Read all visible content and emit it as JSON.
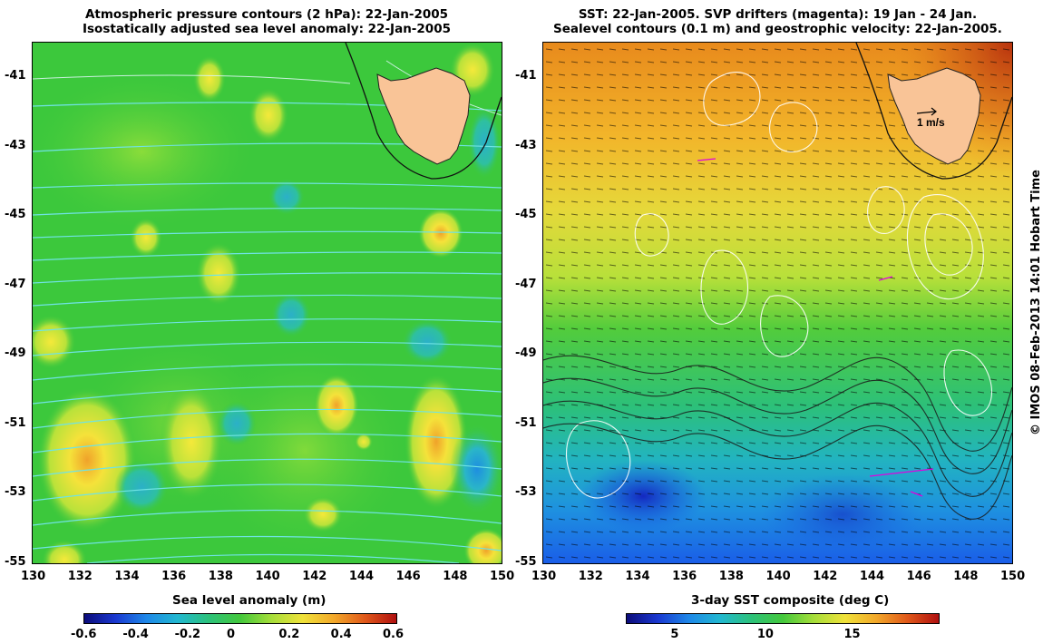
{
  "left_panel": {
    "title_line1": "Atmospheric pressure contours (2 hPa): 22-Jan-2005",
    "title_line2": "Isostatically adjusted sea level anomaly: 22-Jan-2005",
    "colorbar_title": "Sea level anomaly (m)",
    "colorbar_ticks": [
      "-0.6",
      "-0.4",
      "-0.2",
      "0",
      "0.2",
      "0.4",
      "0.6"
    ],
    "colorbar_range": [
      -0.6,
      0.6
    ]
  },
  "right_panel": {
    "title_line1": "SST: 22-Jan-2005. SVP drifters (magenta): 19 Jan - 24 Jan.",
    "title_line2": "Sealevel contours (0.1 m) and geostrophic velocity: 22-Jan-2005.",
    "colorbar_title": "3-day SST composite (deg C)",
    "colorbar_ticks": [
      "5",
      "10",
      "15"
    ],
    "colorbar_tick_values": [
      5,
      10,
      15
    ],
    "colorbar_range": [
      2,
      20
    ],
    "velocity_scale_label": "1 m/s"
  },
  "axes": {
    "x_ticks": [
      "130",
      "132",
      "134",
      "136",
      "138",
      "140",
      "142",
      "144",
      "146",
      "148",
      "150"
    ],
    "y_ticks": [
      "-41",
      "-43",
      "-45",
      "-47",
      "-49",
      "-51",
      "-53",
      "-55"
    ],
    "lon_range": [
      130,
      150
    ],
    "lat_range": [
      -40,
      -55
    ]
  },
  "credit": "© IMOS 08-Feb-2013 14:01 Hobart Time",
  "colors": {
    "land": "#f9c497",
    "sla_background": "#3cc83c",
    "contour_cyan": "#6fe3e3",
    "sealevel_contour": "#ffffff",
    "drifter": "#e000e0"
  }
}
